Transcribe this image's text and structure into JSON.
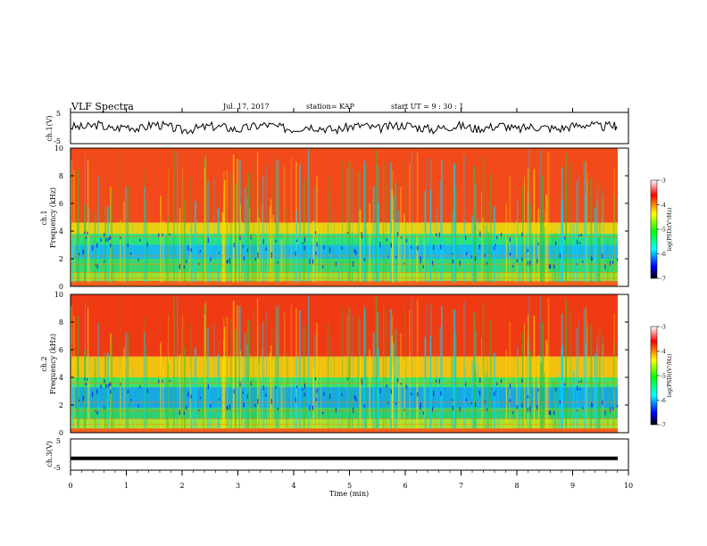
{
  "header": {
    "title": "VLF Spectra",
    "date": "Jul. 17, 2017",
    "station": "station= KAP",
    "start": "start UT =  9 : 30 : 1"
  },
  "colors": {
    "background": "#ffffff",
    "axes": "#000000",
    "colormap": [
      "#000000",
      "#0000ff",
      "#00ffff",
      "#00ff00",
      "#ffff00",
      "#ff0000",
      "#ffffff"
    ]
  },
  "chart_data": [
    {
      "id": "ch1-waveform",
      "type": "line",
      "ylabel": "ch.1(V)",
      "ylim": [
        -5,
        5
      ],
      "yticks": [
        5,
        -5
      ],
      "xlim": [
        0,
        10
      ],
      "description_points_x": [
        0,
        0.25,
        0.5,
        0.75,
        1,
        1.25,
        1.5,
        1.75,
        2,
        2.25,
        2.5,
        2.75,
        3,
        3.25,
        3.5,
        3.75,
        4,
        4.25,
        4.5,
        4.75,
        5,
        5.25,
        5.5,
        5.75,
        6,
        6.25,
        6.5,
        6.75,
        7,
        7.25,
        7.5,
        7.75,
        8,
        8.25,
        8.5,
        8.75,
        9,
        9.25,
        9.5,
        9.75,
        9.8
      ],
      "values": [
        0.5,
        0.2,
        1.2,
        -0.5,
        0.8,
        -0.3,
        1.5,
        0.4,
        -0.8,
        -0.2,
        0.6,
        0.3,
        -0.6,
        0.4,
        1.2,
        0.2,
        -0.4,
        0.8,
        0.1,
        -0.7,
        0.5,
        0.9,
        -0.3,
        0.6,
        1.1,
        0.2,
        -0.5,
        0.4,
        0.8,
        -0.2,
        0.3,
        1.0,
        -0.6,
        0.5,
        0.2,
        -0.3,
        0.7,
        1.3,
        0.4,
        0.9,
        0.1
      ]
    },
    {
      "id": "ch1-spectrogram",
      "type": "heatmap",
      "ylabel": "ch.1\nFrequency (kHz)",
      "ylim": [
        0,
        10
      ],
      "yticks": [
        0,
        2,
        4,
        6,
        8,
        10
      ],
      "xlim": [
        0,
        10
      ],
      "colorbar": {
        "label": "log(PSD)(V²/Hz)",
        "range": [
          -7,
          -3
        ],
        "ticks": [
          -3,
          -4,
          -5,
          -6,
          -7
        ]
      }
    },
    {
      "id": "ch2-spectrogram",
      "type": "heatmap",
      "ylabel": "ch.2\nFrequency (kHz)",
      "ylim": [
        0,
        10
      ],
      "yticks": [
        0,
        2,
        4,
        6,
        8,
        10
      ],
      "xlim": [
        0,
        10
      ],
      "colorbar": {
        "label": "log(PSD)(V²/Hz)",
        "range": [
          -7,
          -3
        ],
        "ticks": [
          -3,
          -4,
          -5,
          -6,
          -7
        ]
      }
    },
    {
      "id": "ch3-waveform",
      "type": "line",
      "ylabel": "ch.3(V)",
      "ylim": [
        -5,
        5
      ],
      "yticks": [
        5,
        0,
        -5
      ],
      "xlim": [
        0,
        10
      ],
      "values_constant": -1.5
    }
  ],
  "xaxis": {
    "label": "Time (min)",
    "ticks": [
      0,
      1,
      2,
      3,
      4,
      5,
      6,
      7,
      8,
      9,
      10
    ]
  }
}
